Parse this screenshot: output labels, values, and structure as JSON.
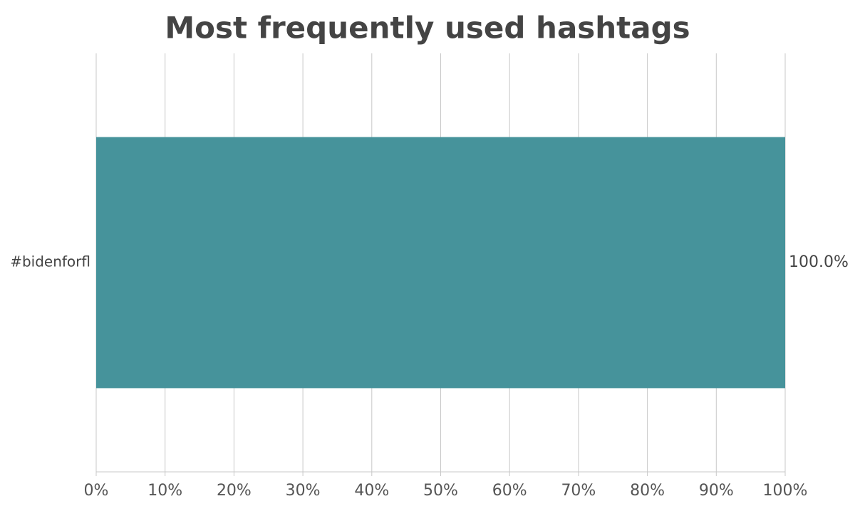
{
  "chart_data": {
    "type": "bar",
    "orientation": "horizontal",
    "title": "Most frequently used hashtags",
    "categories": [
      "#bidenforfl"
    ],
    "values": [
      100
    ],
    "value_labels": [
      "100.0%"
    ],
    "color": "#46939b",
    "xlim": [
      0,
      100
    ],
    "xticks": [
      {
        "value": 0,
        "label": "0%"
      },
      {
        "value": 10,
        "label": "10%"
      },
      {
        "value": 20,
        "label": "20%"
      },
      {
        "value": 30,
        "label": "30%"
      },
      {
        "value": 40,
        "label": "40%"
      },
      {
        "value": 50,
        "label": "50%"
      },
      {
        "value": 60,
        "label": "60%"
      },
      {
        "value": 70,
        "label": "70%"
      },
      {
        "value": 80,
        "label": "80%"
      },
      {
        "value": 90,
        "label": "90%"
      },
      {
        "value": 100,
        "label": "100%"
      }
    ],
    "grid": true
  }
}
